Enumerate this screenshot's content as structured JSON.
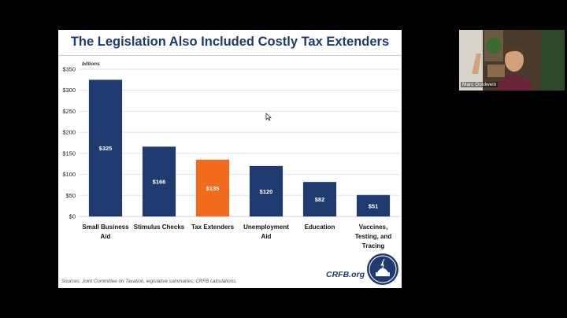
{
  "slide": {
    "title": "The Legislation Also Included Costly Tax Extenders",
    "sources": "Sources: Joint Committee on Taxation, legislative summaries, CRFB calculations.",
    "brand": "CRFB.org"
  },
  "webcam": {
    "participant_name": "Marc Goldwein"
  },
  "colors": {
    "navy": "#1f3a6e",
    "bar_primary": "#1f3a6e",
    "bar_highlight": "#f26b1d",
    "grid": "#d9d9d9"
  },
  "chart_data": {
    "type": "bar",
    "title": "The Legislation Also Included Costly Tax Extenders",
    "ylabel": "billions",
    "xlabel": "",
    "ylim": [
      0,
      350
    ],
    "yticks": [
      0,
      50,
      100,
      150,
      200,
      250,
      300,
      350
    ],
    "ytick_labels": [
      "$0",
      "$50",
      "$100",
      "$150",
      "$200",
      "$250",
      "$300",
      "$350"
    ],
    "grid": true,
    "categories": [
      [
        "Small Business",
        "Aid"
      ],
      [
        "Stimulus Checks"
      ],
      [
        "Tax Extenders"
      ],
      [
        "Unemployment",
        "Aid"
      ],
      [
        "Education"
      ],
      [
        "Vaccines,",
        "Testing, and",
        "Tracing"
      ]
    ],
    "values": [
      325,
      166,
      135,
      120,
      82,
      51
    ],
    "data_labels": [
      "$325",
      "$166",
      "$135",
      "$120",
      "$82",
      "$51"
    ],
    "highlight_index": 2
  }
}
